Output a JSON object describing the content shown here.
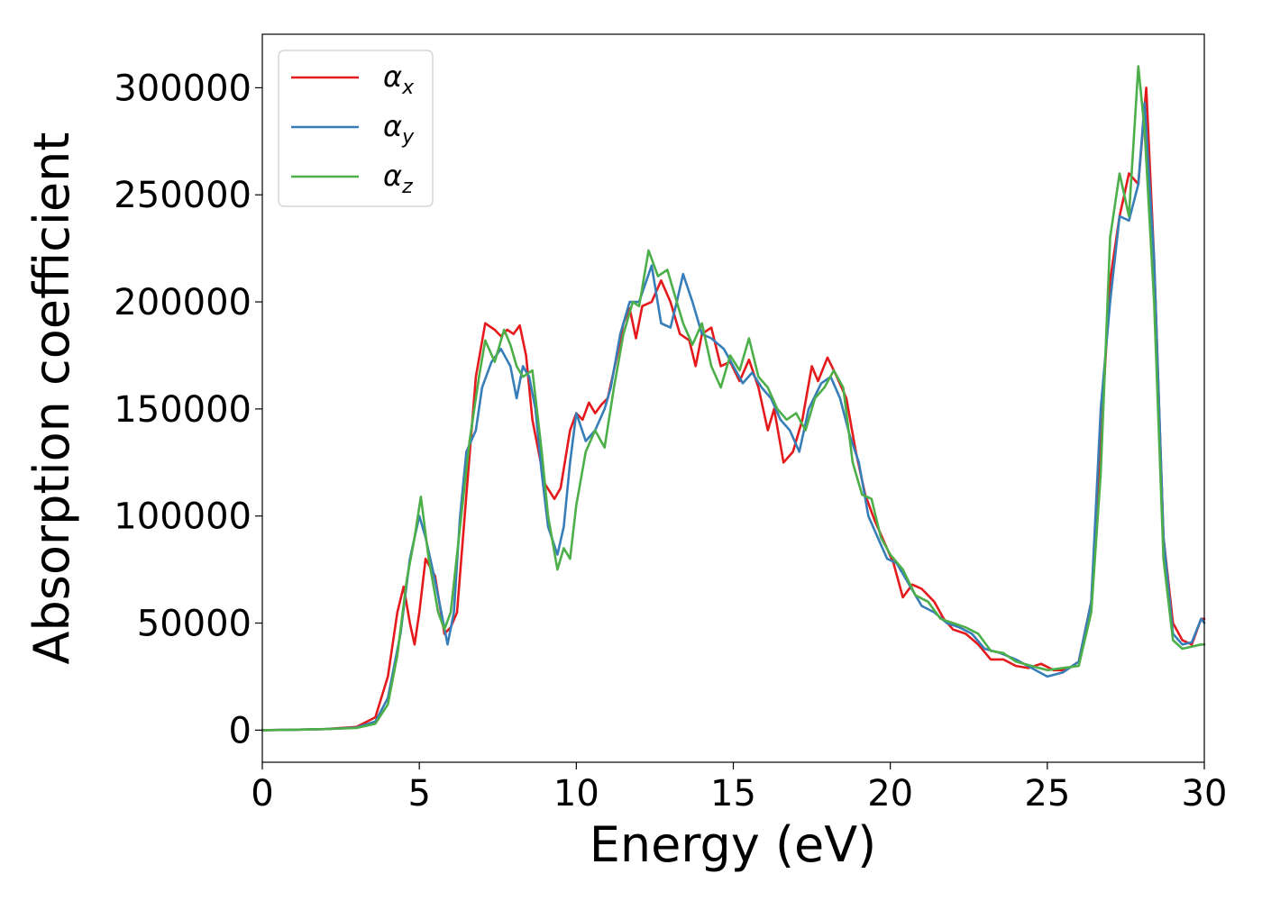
{
  "chart_data": {
    "type": "line",
    "xlabel": "Energy (eV)",
    "ylabel": "Absorption coefficient",
    "xlim": [
      0,
      30
    ],
    "ylim": [
      -15000,
      325000
    ],
    "xticks": [
      "0",
      "5",
      "10",
      "15",
      "20",
      "25",
      "30"
    ],
    "yticks": [
      "0",
      "50000",
      "100000",
      "150000",
      "200000",
      "250000",
      "300000"
    ],
    "grid": false,
    "legend_position": "top-left",
    "legend": [
      {
        "symbol": "α",
        "subscript": "x",
        "color": "#e41a1c"
      },
      {
        "symbol": "α",
        "subscript": "y",
        "color": "#377eb8"
      },
      {
        "symbol": "α",
        "subscript": "z",
        "color": "#4daf4a"
      }
    ],
    "series": [
      {
        "key": "alpha_x",
        "color": "#e41a1c",
        "points": [
          [
            0,
            0
          ],
          [
            1,
            200
          ],
          [
            2,
            500
          ],
          [
            3,
            1500
          ],
          [
            3.6,
            6000
          ],
          [
            4.0,
            25000
          ],
          [
            4.3,
            55000
          ],
          [
            4.5,
            67000
          ],
          [
            4.7,
            50000
          ],
          [
            4.85,
            40000
          ],
          [
            5.0,
            55000
          ],
          [
            5.2,
            80000
          ],
          [
            5.5,
            72000
          ],
          [
            5.8,
            45000
          ],
          [
            6.0,
            48000
          ],
          [
            6.2,
            55000
          ],
          [
            6.5,
            110000
          ],
          [
            6.8,
            165000
          ],
          [
            7.1,
            190000
          ],
          [
            7.4,
            187000
          ],
          [
            7.6,
            184000
          ],
          [
            7.8,
            187000
          ],
          [
            8.0,
            185000
          ],
          [
            8.2,
            189000
          ],
          [
            8.4,
            175000
          ],
          [
            8.6,
            145000
          ],
          [
            8.8,
            130000
          ],
          [
            9.0,
            115000
          ],
          [
            9.3,
            108000
          ],
          [
            9.5,
            113000
          ],
          [
            9.8,
            140000
          ],
          [
            10.0,
            148000
          ],
          [
            10.2,
            145000
          ],
          [
            10.4,
            153000
          ],
          [
            10.6,
            148000
          ],
          [
            10.8,
            152000
          ],
          [
            11.0,
            155000
          ],
          [
            11.3,
            175000
          ],
          [
            11.5,
            190000
          ],
          [
            11.7,
            197000
          ],
          [
            11.9,
            183000
          ],
          [
            12.1,
            198000
          ],
          [
            12.4,
            200000
          ],
          [
            12.7,
            210000
          ],
          [
            13.0,
            200000
          ],
          [
            13.3,
            185000
          ],
          [
            13.6,
            182000
          ],
          [
            13.8,
            170000
          ],
          [
            14.0,
            185000
          ],
          [
            14.3,
            188000
          ],
          [
            14.6,
            170000
          ],
          [
            14.9,
            172000
          ],
          [
            15.2,
            163000
          ],
          [
            15.5,
            173000
          ],
          [
            15.8,
            160000
          ],
          [
            16.1,
            140000
          ],
          [
            16.3,
            150000
          ],
          [
            16.6,
            125000
          ],
          [
            16.9,
            130000
          ],
          [
            17.2,
            145000
          ],
          [
            17.5,
            170000
          ],
          [
            17.7,
            163000
          ],
          [
            18.0,
            174000
          ],
          [
            18.3,
            165000
          ],
          [
            18.6,
            155000
          ],
          [
            18.9,
            130000
          ],
          [
            19.2,
            110000
          ],
          [
            19.5,
            98000
          ],
          [
            19.8,
            88000
          ],
          [
            20.1,
            78000
          ],
          [
            20.4,
            62000
          ],
          [
            20.7,
            68000
          ],
          [
            21.0,
            66000
          ],
          [
            21.4,
            60000
          ],
          [
            21.7,
            52000
          ],
          [
            22.0,
            47000
          ],
          [
            22.4,
            45000
          ],
          [
            22.8,
            40000
          ],
          [
            23.2,
            33000
          ],
          [
            23.6,
            33000
          ],
          [
            24.0,
            30000
          ],
          [
            24.4,
            29000
          ],
          [
            24.8,
            31000
          ],
          [
            25.2,
            28000
          ],
          [
            25.6,
            28000
          ],
          [
            26.0,
            32000
          ],
          [
            26.4,
            60000
          ],
          [
            26.7,
            135000
          ],
          [
            27.0,
            210000
          ],
          [
            27.3,
            240000
          ],
          [
            27.6,
            260000
          ],
          [
            27.9,
            255000
          ],
          [
            28.15,
            300000
          ],
          [
            28.4,
            220000
          ],
          [
            28.7,
            90000
          ],
          [
            29.0,
            50000
          ],
          [
            29.3,
            42000
          ],
          [
            29.6,
            40000
          ],
          [
            29.9,
            52000
          ],
          [
            30.0,
            52000
          ]
        ]
      },
      {
        "key": "alpha_y",
        "color": "#377eb8",
        "points": [
          [
            0,
            0
          ],
          [
            1,
            200
          ],
          [
            2,
            500
          ],
          [
            3,
            1200
          ],
          [
            3.6,
            4000
          ],
          [
            4.0,
            15000
          ],
          [
            4.4,
            45000
          ],
          [
            4.7,
            80000
          ],
          [
            5.0,
            100000
          ],
          [
            5.2,
            90000
          ],
          [
            5.5,
            70000
          ],
          [
            5.7,
            55000
          ],
          [
            5.9,
            40000
          ],
          [
            6.1,
            55000
          ],
          [
            6.3,
            100000
          ],
          [
            6.5,
            130000
          ],
          [
            6.8,
            140000
          ],
          [
            7.0,
            160000
          ],
          [
            7.3,
            172000
          ],
          [
            7.6,
            178000
          ],
          [
            7.9,
            170000
          ],
          [
            8.1,
            155000
          ],
          [
            8.3,
            170000
          ],
          [
            8.5,
            165000
          ],
          [
            8.7,
            150000
          ],
          [
            8.9,
            120000
          ],
          [
            9.1,
            95000
          ],
          [
            9.4,
            82000
          ],
          [
            9.6,
            95000
          ],
          [
            9.8,
            125000
          ],
          [
            10.0,
            148000
          ],
          [
            10.3,
            135000
          ],
          [
            10.6,
            140000
          ],
          [
            10.9,
            150000
          ],
          [
            11.1,
            160000
          ],
          [
            11.4,
            185000
          ],
          [
            11.7,
            200000
          ],
          [
            12.0,
            200000
          ],
          [
            12.4,
            217000
          ],
          [
            12.7,
            190000
          ],
          [
            13.0,
            188000
          ],
          [
            13.2,
            200000
          ],
          [
            13.4,
            213000
          ],
          [
            13.7,
            200000
          ],
          [
            14.0,
            185000
          ],
          [
            14.3,
            183000
          ],
          [
            14.7,
            178000
          ],
          [
            15.0,
            170000
          ],
          [
            15.3,
            162000
          ],
          [
            15.6,
            167000
          ],
          [
            15.9,
            160000
          ],
          [
            16.2,
            155000
          ],
          [
            16.5,
            145000
          ],
          [
            16.8,
            140000
          ],
          [
            17.1,
            130000
          ],
          [
            17.4,
            150000
          ],
          [
            17.8,
            162000
          ],
          [
            18.1,
            165000
          ],
          [
            18.4,
            155000
          ],
          [
            18.7,
            138000
          ],
          [
            19.0,
            125000
          ],
          [
            19.3,
            100000
          ],
          [
            19.6,
            90000
          ],
          [
            19.9,
            80000
          ],
          [
            20.2,
            78000
          ],
          [
            20.6,
            68000
          ],
          [
            21.0,
            58000
          ],
          [
            21.4,
            55000
          ],
          [
            21.8,
            50000
          ],
          [
            22.2,
            48000
          ],
          [
            22.6,
            45000
          ],
          [
            23.0,
            38000
          ],
          [
            23.5,
            36000
          ],
          [
            24.0,
            33000
          ],
          [
            24.5,
            29000
          ],
          [
            25.0,
            25000
          ],
          [
            25.5,
            27000
          ],
          [
            26.0,
            32000
          ],
          [
            26.4,
            60000
          ],
          [
            26.7,
            150000
          ],
          [
            27.0,
            200000
          ],
          [
            27.3,
            240000
          ],
          [
            27.6,
            238000
          ],
          [
            27.9,
            255000
          ],
          [
            28.1,
            293000
          ],
          [
            28.4,
            220000
          ],
          [
            28.7,
            90000
          ],
          [
            29.0,
            45000
          ],
          [
            29.3,
            40000
          ],
          [
            29.6,
            41000
          ],
          [
            29.9,
            52000
          ],
          [
            30.0,
            50000
          ]
        ]
      },
      {
        "key": "alpha_z",
        "color": "#4daf4a",
        "points": [
          [
            0,
            0
          ],
          [
            1,
            200
          ],
          [
            2,
            500
          ],
          [
            3,
            1000
          ],
          [
            3.6,
            3000
          ],
          [
            4.0,
            12000
          ],
          [
            4.3,
            35000
          ],
          [
            4.6,
            70000
          ],
          [
            4.85,
            90000
          ],
          [
            5.05,
            109000
          ],
          [
            5.3,
            80000
          ],
          [
            5.6,
            55000
          ],
          [
            5.8,
            47000
          ],
          [
            6.0,
            55000
          ],
          [
            6.3,
            95000
          ],
          [
            6.6,
            135000
          ],
          [
            6.9,
            165000
          ],
          [
            7.1,
            182000
          ],
          [
            7.4,
            172000
          ],
          [
            7.7,
            187000
          ],
          [
            7.9,
            180000
          ],
          [
            8.1,
            170000
          ],
          [
            8.3,
            165000
          ],
          [
            8.6,
            168000
          ],
          [
            8.9,
            130000
          ],
          [
            9.1,
            100000
          ],
          [
            9.4,
            75000
          ],
          [
            9.6,
            85000
          ],
          [
            9.8,
            80000
          ],
          [
            10.0,
            105000
          ],
          [
            10.3,
            130000
          ],
          [
            10.6,
            140000
          ],
          [
            10.9,
            132000
          ],
          [
            11.2,
            160000
          ],
          [
            11.5,
            185000
          ],
          [
            11.8,
            200000
          ],
          [
            12.0,
            198000
          ],
          [
            12.3,
            224000
          ],
          [
            12.6,
            212000
          ],
          [
            12.9,
            215000
          ],
          [
            13.2,
            200000
          ],
          [
            13.4,
            190000
          ],
          [
            13.7,
            180000
          ],
          [
            14.0,
            190000
          ],
          [
            14.3,
            170000
          ],
          [
            14.6,
            160000
          ],
          [
            14.9,
            175000
          ],
          [
            15.2,
            168000
          ],
          [
            15.5,
            183000
          ],
          [
            15.8,
            165000
          ],
          [
            16.1,
            160000
          ],
          [
            16.4,
            150000
          ],
          [
            16.7,
            145000
          ],
          [
            17.0,
            148000
          ],
          [
            17.3,
            140000
          ],
          [
            17.6,
            155000
          ],
          [
            17.9,
            160000
          ],
          [
            18.2,
            168000
          ],
          [
            18.5,
            160000
          ],
          [
            18.8,
            125000
          ],
          [
            19.1,
            110000
          ],
          [
            19.4,
            108000
          ],
          [
            19.7,
            90000
          ],
          [
            20.0,
            82000
          ],
          [
            20.4,
            75000
          ],
          [
            20.8,
            63000
          ],
          [
            21.2,
            60000
          ],
          [
            21.6,
            52000
          ],
          [
            22.0,
            50000
          ],
          [
            22.4,
            48000
          ],
          [
            22.8,
            45000
          ],
          [
            23.2,
            37000
          ],
          [
            23.6,
            36000
          ],
          [
            24.0,
            32000
          ],
          [
            24.5,
            30000
          ],
          [
            25.0,
            28000
          ],
          [
            25.5,
            29000
          ],
          [
            26.0,
            30000
          ],
          [
            26.4,
            55000
          ],
          [
            26.7,
            120000
          ],
          [
            27.0,
            230000
          ],
          [
            27.3,
            260000
          ],
          [
            27.6,
            240000
          ],
          [
            27.9,
            310000
          ],
          [
            28.1,
            280000
          ],
          [
            28.4,
            200000
          ],
          [
            28.7,
            80000
          ],
          [
            29.0,
            42000
          ],
          [
            29.3,
            38000
          ],
          [
            29.6,
            39000
          ],
          [
            29.9,
            40000
          ],
          [
            30.0,
            40000
          ]
        ]
      }
    ]
  }
}
